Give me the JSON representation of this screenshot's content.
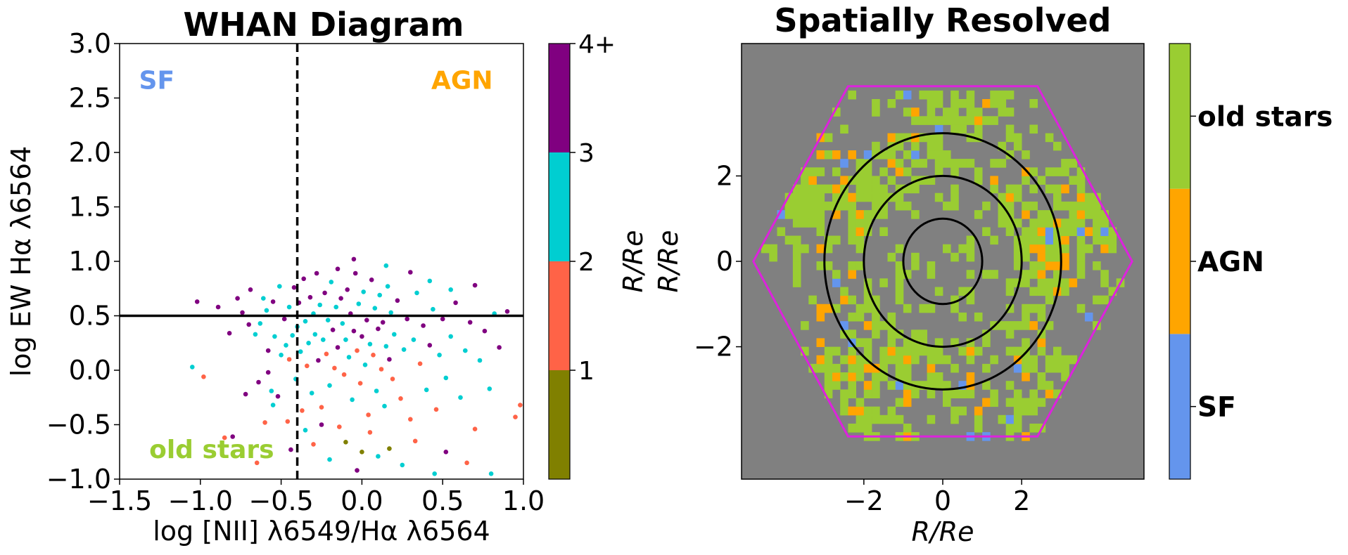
{
  "chart_data": [
    {
      "type": "scatter",
      "title": "WHAN Diagram",
      "xlabel": "log [NII] λ6549/Hα λ6564",
      "ylabel": "log EW Hα λ6564",
      "xlim": [
        -1.5,
        1.0
      ],
      "ylim": [
        -1.0,
        3.0
      ],
      "xticks": [
        -1.5,
        -1.0,
        -0.5,
        0.0,
        0.5,
        1.0
      ],
      "xtick_labels": [
        "−1.5",
        "−1.0",
        "−0.5",
        "0.0",
        "0.5",
        "1.0"
      ],
      "yticks": [
        -1.0,
        -0.5,
        0.0,
        0.5,
        1.0,
        1.5,
        2.0,
        2.5,
        3.0
      ],
      "ytick_labels": [
        "−1.0",
        "−0.5",
        "0.0",
        "0.5",
        "1.0",
        "1.5",
        "2.0",
        "2.5",
        "3.0"
      ],
      "vline_x": -0.4,
      "hline_y": 0.5,
      "region_labels": [
        {
          "text": "SF",
          "x": -1.27,
          "y": 2.66,
          "color": "#6495ed"
        },
        {
          "text": "AGN",
          "x": 0.62,
          "y": 2.66,
          "color": "#ffa500"
        },
        {
          "text": "old stars",
          "x": -0.93,
          "y": -0.73,
          "color": "#9acd32"
        }
      ],
      "colorbar": {
        "label": "R/Re",
        "bins": [
          {
            "tick": "",
            "color": "#808000"
          },
          {
            "tick": "1",
            "color": "#ff6347"
          },
          {
            "tick": "2",
            "color": "#00ced1"
          },
          {
            "tick": "3",
            "color": "#800080"
          }
        ],
        "top_tick": "4+"
      },
      "series_colors": [
        "#808000",
        "#ff6347",
        "#00ced1",
        "#800080"
      ],
      "points": [
        [
          -1.05,
          0.03,
          2
        ],
        [
          -1.02,
          0.63,
          3
        ],
        [
          -0.89,
          0.58,
          3
        ],
        [
          -0.82,
          0.34,
          3
        ],
        [
          -0.8,
          -0.61,
          3
        ],
        [
          -0.77,
          0.66,
          3
        ],
        [
          -0.74,
          0.53,
          3
        ],
        [
          -0.72,
          -0.22,
          3
        ],
        [
          -0.7,
          0.42,
          3
        ],
        [
          -0.69,
          0.74,
          3
        ],
        [
          -0.66,
          0.33,
          2
        ],
        [
          -0.64,
          -0.11,
          3
        ],
        [
          -0.63,
          0.43,
          2
        ],
        [
          -0.61,
          0.66,
          2
        ],
        [
          -0.59,
          0.55,
          2
        ],
        [
          -0.58,
          -0.02,
          3
        ],
        [
          -0.56,
          -0.19,
          2
        ],
        [
          -0.55,
          0.63,
          3
        ],
        [
          -0.54,
          0.31,
          2
        ],
        [
          -0.52,
          -0.24,
          3
        ],
        [
          -0.51,
          0.77,
          2
        ],
        [
          -0.5,
          0.14,
          2
        ],
        [
          -0.48,
          0.47,
          3
        ],
        [
          -0.47,
          0.23,
          2
        ],
        [
          -0.46,
          -0.47,
          1
        ],
        [
          -0.45,
          0.58,
          2
        ],
        [
          -0.43,
          0.32,
          2
        ],
        [
          -0.42,
          0.76,
          3
        ],
        [
          -0.41,
          -0.08,
          2
        ],
        [
          -0.4,
          0.4,
          2
        ],
        [
          -0.39,
          0.62,
          3
        ],
        [
          -0.38,
          0.17,
          2
        ],
        [
          -0.37,
          -0.37,
          1
        ],
        [
          -0.36,
          0.84,
          3
        ],
        [
          -0.35,
          0.45,
          2
        ],
        [
          -0.34,
          0.04,
          1
        ],
        [
          -0.33,
          0.25,
          2
        ],
        [
          -0.32,
          0.67,
          3
        ],
        [
          -0.31,
          -0.21,
          2
        ],
        [
          -0.3,
          0.52,
          2
        ],
        [
          -0.29,
          0.33,
          2
        ],
        [
          -0.28,
          0.89,
          3
        ],
        [
          -0.27,
          0.09,
          3
        ],
        [
          -0.26,
          0.6,
          2
        ],
        [
          -0.25,
          -0.34,
          1
        ],
        [
          -0.24,
          0.28,
          2
        ],
        [
          -0.23,
          0.71,
          3
        ],
        [
          -0.22,
          0.15,
          1
        ],
        [
          -0.21,
          0.46,
          2
        ],
        [
          -0.2,
          -0.14,
          2
        ],
        [
          -0.19,
          0.81,
          2
        ],
        [
          -0.18,
          0.37,
          3
        ],
        [
          -0.17,
          0.02,
          1
        ],
        [
          -0.16,
          0.58,
          2
        ],
        [
          -0.15,
          0.21,
          3
        ],
        [
          -0.14,
          -0.52,
          1
        ],
        [
          -0.13,
          0.66,
          3
        ],
        [
          -0.12,
          0.43,
          2
        ],
        [
          -0.11,
          -0.04,
          1
        ],
        [
          -0.1,
          0.28,
          2
        ],
        [
          -0.09,
          0.74,
          3
        ],
        [
          -0.08,
          0.12,
          2
        ],
        [
          -0.07,
          0.52,
          3
        ],
        [
          -0.06,
          -0.27,
          2
        ],
        [
          -0.05,
          0.36,
          3
        ],
        [
          -0.04,
          0.89,
          3
        ],
        [
          -0.03,
          0.18,
          1
        ],
        [
          -0.02,
          0.61,
          2
        ],
        [
          -0.01,
          -0.12,
          1
        ],
        [
          0.0,
          0.31,
          3
        ],
        [
          0.01,
          0.72,
          2
        ],
        [
          0.02,
          0.05,
          2
        ],
        [
          0.03,
          0.46,
          3
        ],
        [
          0.04,
          -0.41,
          1
        ],
        [
          0.05,
          0.24,
          2
        ],
        [
          0.06,
          0.83,
          3
        ],
        [
          0.07,
          0.14,
          1
        ],
        [
          0.08,
          0.57,
          2
        ],
        [
          0.09,
          -0.19,
          2
        ],
        [
          0.1,
          0.38,
          3
        ],
        [
          0.11,
          0.69,
          2
        ],
        [
          0.12,
          0.01,
          1
        ],
        [
          0.13,
          0.44,
          3
        ],
        [
          0.14,
          -0.33,
          2
        ],
        [
          0.15,
          0.22,
          2
        ],
        [
          0.16,
          0.77,
          2
        ],
        [
          0.17,
          0.1,
          3
        ],
        [
          0.18,
          0.53,
          2
        ],
        [
          0.19,
          -0.08,
          1
        ],
        [
          0.2,
          0.33,
          2
        ],
        [
          0.22,
          0.64,
          3
        ],
        [
          0.24,
          -0.26,
          1
        ],
        [
          0.26,
          0.19,
          2
        ],
        [
          0.28,
          0.47,
          3
        ],
        [
          0.3,
          -0.45,
          1
        ],
        [
          0.32,
          0.28,
          2
        ],
        [
          0.34,
          0.71,
          2
        ],
        [
          0.36,
          0.06,
          1
        ],
        [
          0.38,
          0.41,
          3
        ],
        [
          0.4,
          -0.18,
          2
        ],
        [
          0.42,
          0.23,
          3
        ],
        [
          0.44,
          0.56,
          2
        ],
        [
          0.46,
          -0.36,
          1
        ],
        [
          0.48,
          0.14,
          2
        ],
        [
          0.5,
          0.47,
          3
        ],
        [
          0.52,
          -0.07,
          2
        ],
        [
          0.55,
          0.31,
          2
        ],
        [
          0.58,
          0.62,
          3
        ],
        [
          0.61,
          -0.25,
          2
        ],
        [
          0.64,
          0.18,
          2
        ],
        [
          0.67,
          0.44,
          3
        ],
        [
          0.7,
          -0.54,
          1
        ],
        [
          0.73,
          0.09,
          2
        ],
        [
          0.76,
          0.36,
          3
        ],
        [
          0.79,
          -0.17,
          2
        ],
        [
          0.82,
          0.52,
          2
        ],
        [
          0.85,
          0.21,
          3
        ],
        [
          0.9,
          0.54,
          3
        ],
        [
          0.95,
          -0.43,
          1
        ],
        [
          0.98,
          -0.32,
          1
        ],
        [
          -0.98,
          -0.06,
          1
        ],
        [
          -0.85,
          -0.62,
          1
        ],
        [
          -0.6,
          -0.48,
          1
        ],
        [
          -0.44,
          -0.73,
          3
        ],
        [
          -0.3,
          -0.68,
          1
        ],
        [
          -0.2,
          -0.82,
          2
        ],
        [
          -0.1,
          -0.66,
          0
        ],
        [
          -0.03,
          -0.92,
          3
        ],
        [
          0.05,
          -0.57,
          1
        ],
        [
          0.1,
          -0.79,
          2
        ],
        [
          0.17,
          -0.72,
          0
        ],
        [
          0.25,
          -0.87,
          2
        ],
        [
          0.33,
          -0.65,
          1
        ],
        [
          0.45,
          -0.95,
          2
        ],
        [
          0.52,
          -0.75,
          3
        ],
        [
          0.65,
          -0.85,
          1
        ],
        [
          0.8,
          -0.95,
          2
        ],
        [
          -0.65,
          -0.85,
          1
        ],
        [
          -0.55,
          -0.32,
          2
        ],
        [
          -0.45,
          0.1,
          1
        ],
        [
          -0.58,
          0.18,
          3
        ],
        [
          -0.35,
          -0.55,
          2
        ],
        [
          -0.25,
          -0.5,
          3
        ],
        [
          0.0,
          -0.75,
          0
        ],
        [
          -0.15,
          0.93,
          3
        ],
        [
          -0.05,
          1.02,
          3
        ],
        [
          0.15,
          0.96,
          2
        ],
        [
          0.3,
          0.9,
          3
        ],
        [
          0.42,
          0.82,
          2
        ],
        [
          0.55,
          0.74,
          2
        ],
        [
          0.7,
          0.78,
          3
        ]
      ]
    },
    {
      "type": "heatmap",
      "title": "Spatially Resolved",
      "xlabel": "R/Re",
      "ylabel": "R/Re",
      "xlim": [
        -5.1,
        5.1
      ],
      "ylim": [
        -5.1,
        5.1
      ],
      "xticks": [
        -2,
        0,
        2
      ],
      "xtick_labels": [
        "−2",
        "0",
        "2"
      ],
      "yticks": [
        -2,
        0,
        2
      ],
      "ytick_labels": [
        "−2",
        "0",
        "2"
      ],
      "background_color": "#808080",
      "ellipse_radii": [
        1,
        2,
        3
      ],
      "hexagon": {
        "color": "#dd22dd",
        "vertices": [
          [
            -4.8,
            0
          ],
          [
            -2.4,
            4.1
          ],
          [
            2.4,
            4.1
          ],
          [
            4.8,
            0
          ],
          [
            2.4,
            -4.1
          ],
          [
            -2.4,
            -4.1
          ]
        ]
      },
      "categories": [
        "SF",
        "AGN",
        "old stars"
      ],
      "category_colors": [
        "#6495ed",
        "#ffa500",
        "#9acd32"
      ],
      "colorbar": {
        "ticks": [
          "SF",
          "AGN",
          "old stars"
        ],
        "colors": [
          "#6495ed",
          "#ffa500",
          "#9acd32"
        ]
      }
    }
  ]
}
